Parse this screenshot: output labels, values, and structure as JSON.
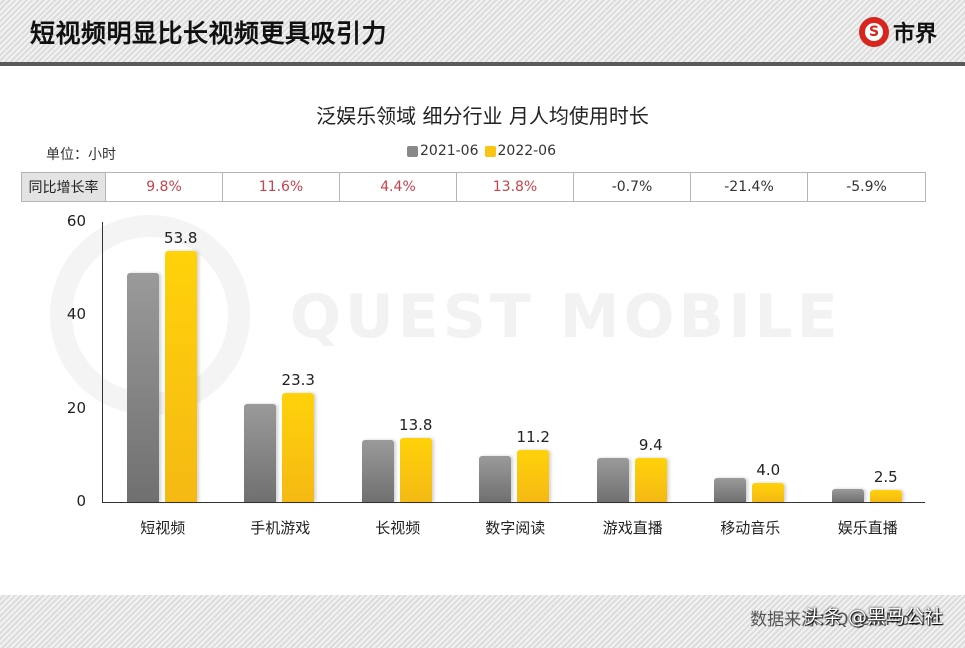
{
  "header": {
    "title": "短视频明显比长视频更具吸引力",
    "brand_text": "市界",
    "brand_icon": "S"
  },
  "chart_data": {
    "type": "bar",
    "title": "泛娱乐领域 细分行业 月人均使用时长",
    "unit_label": "单位：小时",
    "xlabel": "",
    "ylabel": "小时",
    "ylim": [
      0,
      60
    ],
    "yticks": [
      0,
      20,
      40,
      60
    ],
    "legend_position": "top",
    "grid": false,
    "categories": [
      "短视频",
      "手机游戏",
      "长视频",
      "数字阅读",
      "游戏直播",
      "移动音乐",
      "娱乐直播"
    ],
    "series": [
      {
        "name": "2021-06",
        "color": "#888888",
        "values": [
          49.0,
          20.9,
          13.2,
          9.8,
          9.5,
          5.1,
          2.7
        ]
      },
      {
        "name": "2022-06",
        "color": "#F9C412",
        "values": [
          53.8,
          23.3,
          13.8,
          11.2,
          9.4,
          4.0,
          2.5
        ]
      }
    ],
    "data_labels_2022": [
      "53.8",
      "23.3",
      "13.8",
      "11.2",
      "9.4",
      "4.0",
      "2.5"
    ],
    "yoy_header": "同比增长率",
    "yoy_growth": [
      "9.8%",
      "11.6%",
      "4.4%",
      "13.8%",
      "-0.7%",
      "-21.4%",
      "-5.9%"
    ],
    "yoy_colors": [
      "#C8424B",
      "#C8424B",
      "#C8424B",
      "#C8424B",
      "#333333",
      "#333333",
      "#333333"
    ],
    "watermark": "QUEST MOBILE"
  },
  "footer": {
    "source": "数据来源：QuestMobile",
    "credit": "头条 @黑马公社"
  }
}
